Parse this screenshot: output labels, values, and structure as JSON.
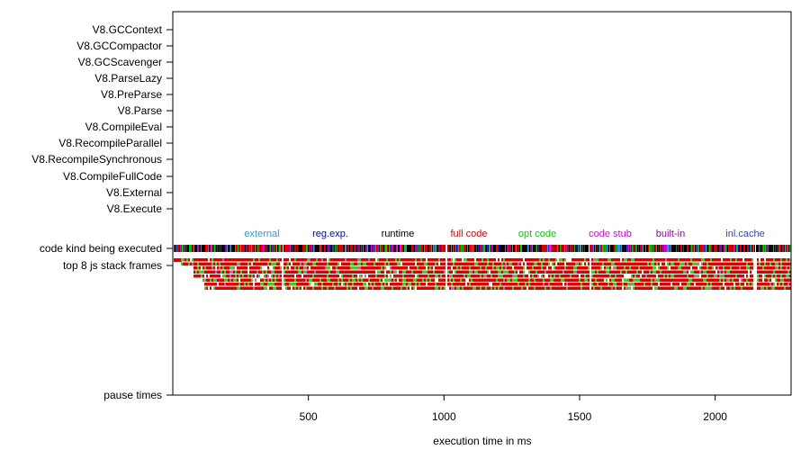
{
  "chart_data": {
    "type": "timeline",
    "xlabel": "execution time in ms",
    "xlim": [
      0,
      2280
    ],
    "x_ticks": [
      500,
      1000,
      1500,
      2000
    ],
    "row_labels": [
      "V8.GCContext",
      "V8.GCCompactor",
      "V8.GCScavenger",
      "V8.ParseLazy",
      "V8.PreParse",
      "V8.Parse",
      "V8.CompileEval",
      "V8.RecompileParallel",
      "V8.RecompileSynchronous",
      "V8.CompileFullCode",
      "V8.External",
      "V8.Execute",
      "code kind being executed",
      "top 8 js stack frames",
      "pause times"
    ],
    "legend": [
      {
        "label": "external",
        "color": "#3399dd"
      },
      {
        "label": "reg.exp.",
        "color": "#0000cc"
      },
      {
        "label": "runtime",
        "color": "#000000"
      },
      {
        "label": "full code",
        "color": "#dd0000"
      },
      {
        "label": "opt code",
        "color": "#00cc00"
      },
      {
        "label": "code stub",
        "color": "#dd00dd"
      },
      {
        "label": "built-in",
        "color": "#9900aa"
      },
      {
        "label": "inl.cache",
        "color": "#3344bb"
      }
    ],
    "gaps_ms": [
      [
        395,
        405
      ],
      [
        1005,
        1012
      ],
      [
        1532,
        1540
      ],
      [
        2140,
        2150
      ]
    ],
    "stack_depth_start_ms": 30
  }
}
